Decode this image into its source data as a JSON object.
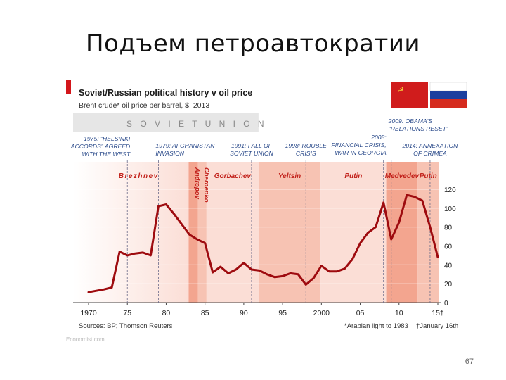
{
  "slide": {
    "title": "Подъем петроавтократии",
    "page_number": "67"
  },
  "colors": {
    "accent": "#b71c1c",
    "line": "#9e0b0f",
    "era_light": "#fbded6",
    "era_mid": "#f7c3b3",
    "era_dark": "#f3a58f",
    "soviet_band": "#e6e6e6",
    "annot": "#2a4a8a"
  },
  "chart_data": {
    "type": "line",
    "title": "Soviet/Russian political history v oil price",
    "subtitle": "Brent crude* oil price per barrel, $, 2013",
    "source": "Sources: BP; Thomson Reuters",
    "footnote": "*Arabian light to 1983",
    "date_note": "†January 16th",
    "watermark": "Economist.com",
    "soviet_band_label": "S O V I E T   U N I O N",
    "x_ticks": [
      "1970",
      "75",
      "80",
      "85",
      "90",
      "95",
      "2000",
      "05",
      "10",
      "15†"
    ],
    "y_ticks": [
      "0",
      "20",
      "40",
      "60",
      "80",
      "100",
      "120"
    ],
    "ylim": [
      0,
      120
    ],
    "xlim": [
      1970,
      2015
    ],
    "leaders": [
      {
        "name": "Brezhnev",
        "start": 1970,
        "end": 1982.9,
        "vertical": false
      },
      {
        "name": "Andropov",
        "start": 1982.9,
        "end": 1984.1,
        "vertical": true
      },
      {
        "name": "Chernenko",
        "start": 1984.1,
        "end": 1985.2,
        "vertical": true
      },
      {
        "name": "Gorbachev",
        "start": 1985.2,
        "end": 1991.9,
        "vertical": false
      },
      {
        "name": "Yeltsin",
        "start": 1991.9,
        "end": 1999.9,
        "vertical": false
      },
      {
        "name": "Putin",
        "start": 1999.9,
        "end": 2008.35,
        "vertical": false
      },
      {
        "name": "Medvedev",
        "start": 2008.35,
        "end": 2012.4,
        "vertical": false
      },
      {
        "name": "Putin",
        "start": 2012.4,
        "end": 2015.1,
        "vertical": false
      }
    ],
    "events": [
      {
        "year": 1975,
        "lines": [
          "1975: \"HELSINKI",
          "ACCORDS\" AGREED",
          "WITH THE WEST"
        ],
        "align": "end"
      },
      {
        "year": 1979,
        "lines": [
          "1979: AFGHANISTAN",
          "INVASION"
        ],
        "align": "start"
      },
      {
        "year": 1991,
        "lines": [
          "1991: FALL OF",
          "SOVIET UNION"
        ],
        "align": "middle"
      },
      {
        "year": 1998,
        "lines": [
          "1998: ROUBLE",
          "CRISIS"
        ],
        "align": "middle"
      },
      {
        "year": 2008,
        "lines": [
          "2008:",
          "FINANCIAL CRISIS,",
          "WAR IN GEORGIA"
        ],
        "align": "end"
      },
      {
        "year": 2009,
        "lines": [
          "2009: OBAMA'S",
          "\"RELATIONS RESET\""
        ],
        "align": "start"
      },
      {
        "year": 2014,
        "lines": [
          "2014: ANNEXATION",
          "OF CRIMEA"
        ],
        "align": "middle"
      }
    ],
    "series": [
      {
        "x": [
          1970,
          1972,
          1973,
          1974,
          1975,
          1976,
          1977,
          1978,
          1979,
          1980,
          1981,
          1982,
          1983,
          1984,
          1985,
          1986,
          1987,
          1988,
          1989,
          1990,
          1991,
          1992,
          1993,
          1994,
          1995,
          1996,
          1997,
          1998,
          1999,
          2000,
          2001,
          2002,
          2003,
          2004,
          2005,
          2006,
          2007,
          2008,
          2009,
          2010,
          2011,
          2012,
          2013,
          2014,
          2015
        ],
        "y": [
          11,
          14,
          16,
          54,
          50,
          52,
          53,
          50,
          102,
          104,
          94,
          83,
          72,
          67,
          63,
          32,
          38,
          31,
          35,
          42,
          35,
          34,
          30,
          27,
          28,
          31,
          30,
          19,
          26,
          39,
          33,
          33,
          36,
          46,
          63,
          74,
          80,
          106,
          67,
          85,
          114,
          112,
          108,
          80,
          48
        ]
      }
    ]
  }
}
